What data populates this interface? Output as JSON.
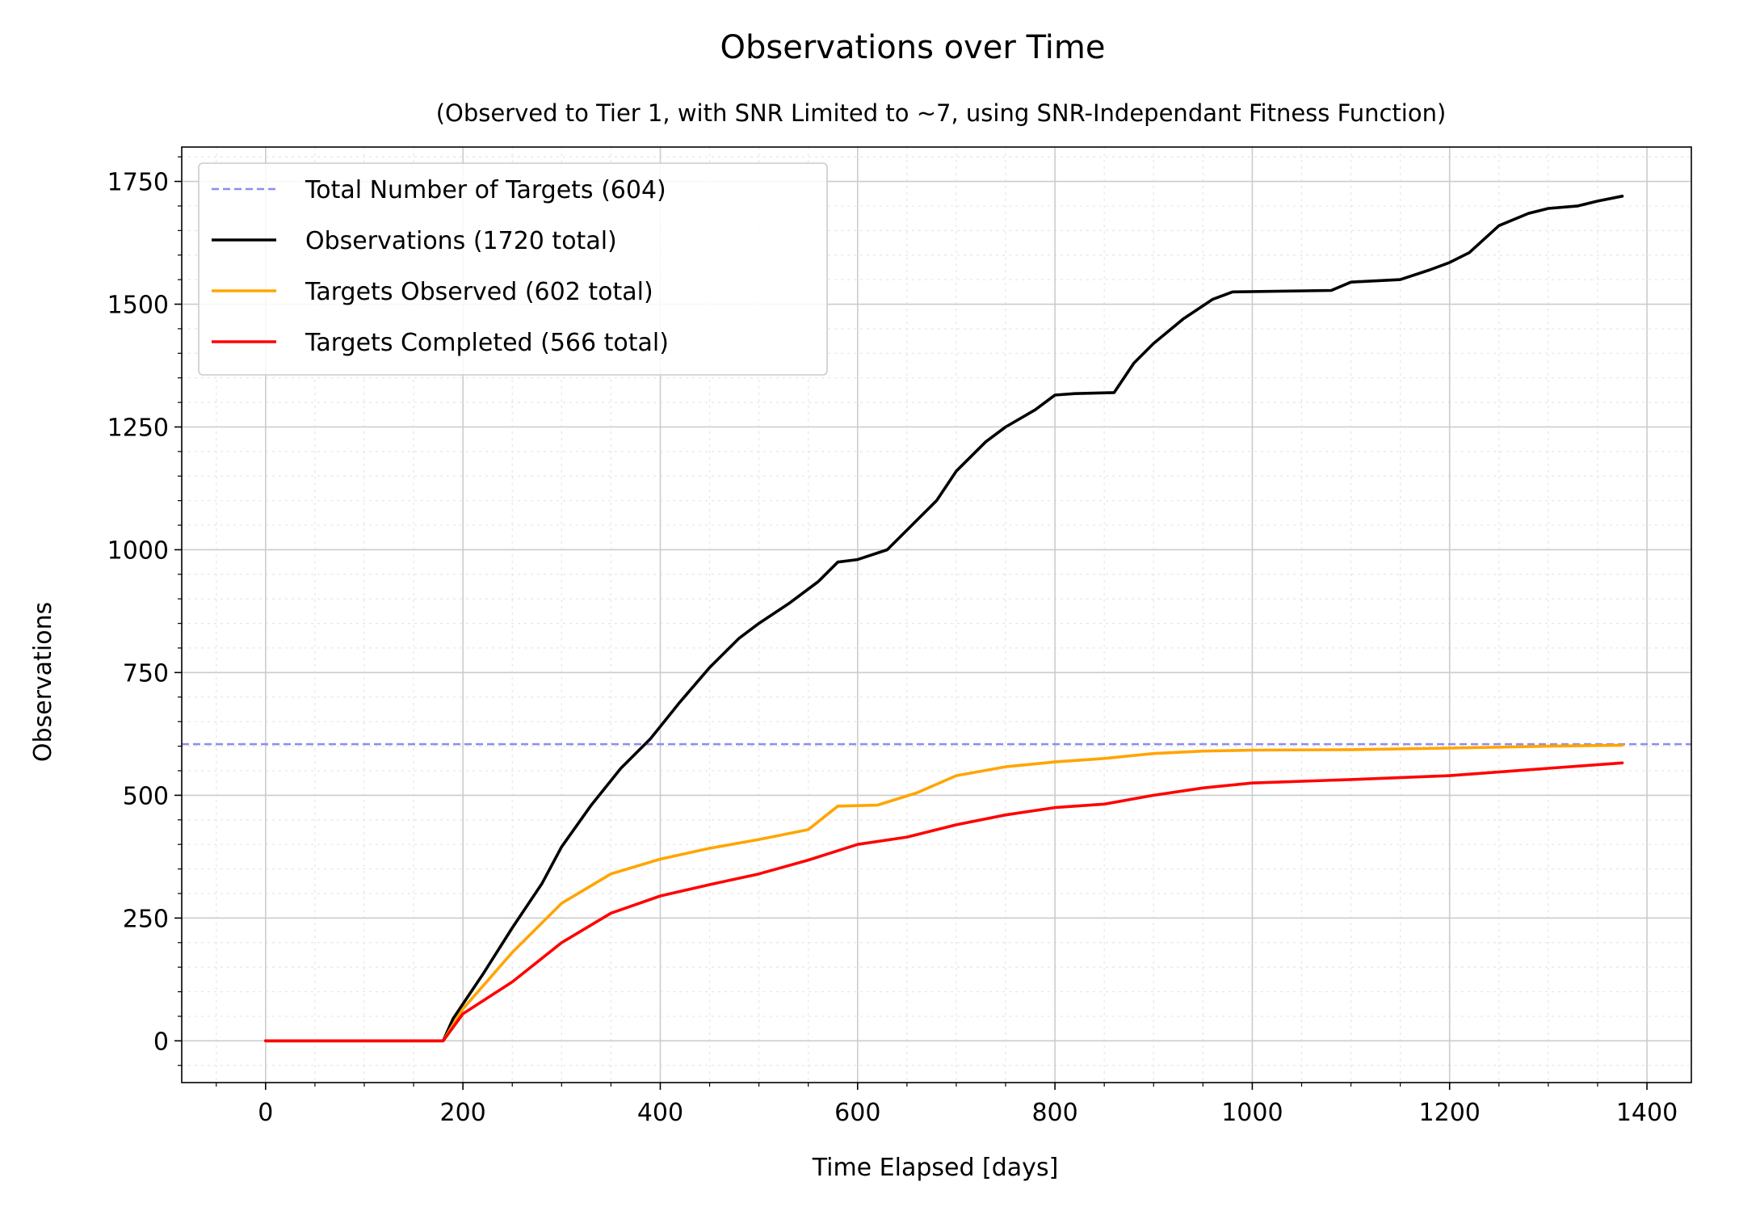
{
  "chart_data": {
    "type": "line",
    "title": "Observations over Time",
    "subtitle": "(Observed to Tier 1, with SNR Limited to ~7, using SNR-Independant Fitness Function)",
    "xlabel": "Time Elapsed [days]",
    "ylabel": "Observations",
    "xlim": [
      -85,
      1445
    ],
    "ylim": [
      -85,
      1820
    ],
    "xticks": [
      0,
      200,
      400,
      600,
      800,
      1000,
      1200,
      1400
    ],
    "yticks": [
      0,
      250,
      500,
      750,
      1000,
      1250,
      1500,
      1750
    ],
    "xtick_labels": [
      "0",
      "200",
      "400",
      "600",
      "800",
      "1000",
      "1200",
      "1400"
    ],
    "ytick_labels": [
      "0",
      "250",
      "500",
      "750",
      "1000",
      "1250",
      "1500",
      "1750"
    ],
    "grid": true,
    "minor_grid": true,
    "legend_position": "upper-left",
    "reference_line": {
      "name": "Total Number of Targets (604)",
      "y": 604,
      "color": "#8c8cf0",
      "style": "dashed"
    },
    "series": [
      {
        "name": "Observations (1720 total)",
        "color": "#000000",
        "x": [
          0,
          180,
          190,
          200,
          220,
          250,
          280,
          300,
          330,
          360,
          390,
          400,
          420,
          450,
          480,
          500,
          530,
          560,
          580,
          600,
          630,
          650,
          680,
          700,
          730,
          750,
          780,
          800,
          820,
          860,
          880,
          900,
          930,
          960,
          980,
          1080,
          1100,
          1150,
          1180,
          1200,
          1220,
          1250,
          1280,
          1300,
          1330,
          1350,
          1375
        ],
        "y": [
          0,
          0,
          45,
          75,
          135,
          230,
          320,
          395,
          480,
          555,
          615,
          640,
          690,
          760,
          820,
          850,
          890,
          935,
          975,
          980,
          1000,
          1040,
          1100,
          1160,
          1220,
          1250,
          1285,
          1315,
          1318,
          1320,
          1380,
          1420,
          1470,
          1510,
          1525,
          1528,
          1545,
          1550,
          1570,
          1585,
          1605,
          1660,
          1685,
          1695,
          1700,
          1710,
          1720
        ]
      },
      {
        "name": "Targets Observed (602 total)",
        "color": "#ffa500",
        "x": [
          0,
          180,
          200,
          250,
          300,
          350,
          400,
          450,
          500,
          550,
          580,
          620,
          660,
          700,
          750,
          800,
          850,
          900,
          950,
          1000,
          1100,
          1200,
          1300,
          1375
        ],
        "y": [
          0,
          0,
          65,
          180,
          280,
          340,
          370,
          392,
          410,
          430,
          478,
          480,
          505,
          540,
          558,
          568,
          575,
          585,
          590,
          592,
          593,
          596,
          600,
          602
        ]
      },
      {
        "name": "Targets Completed (566 total)",
        "color": "#ff0000",
        "x": [
          0,
          180,
          200,
          250,
          300,
          350,
          400,
          450,
          500,
          550,
          600,
          650,
          700,
          750,
          800,
          850,
          900,
          950,
          1000,
          1100,
          1200,
          1300,
          1375
        ],
        "y": [
          0,
          0,
          55,
          120,
          200,
          260,
          295,
          318,
          340,
          368,
          400,
          415,
          440,
          460,
          475,
          482,
          500,
          515,
          525,
          532,
          540,
          555,
          566
        ]
      }
    ]
  }
}
